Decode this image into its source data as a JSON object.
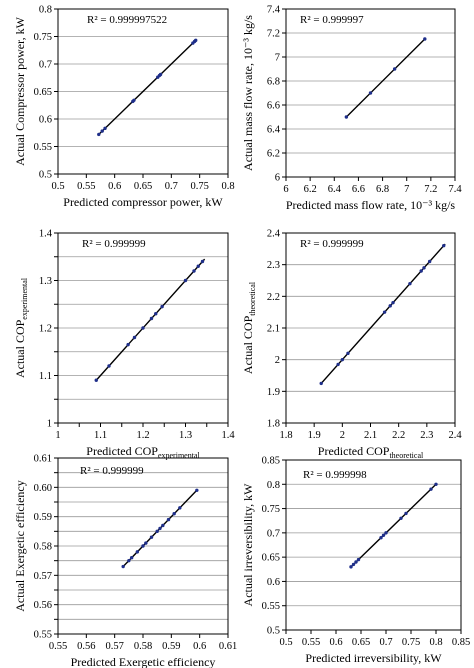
{
  "chart_data": [
    {
      "type": "scatter",
      "title": "",
      "r2_label": "R² = 0.999997522",
      "xlabel": "Predicted compressor power, kW",
      "ylabel": "Actual Compressor power, kW",
      "xlim": [
        0.5,
        0.8
      ],
      "ylim": [
        0.5,
        0.8
      ],
      "xticks": [
        0.5,
        0.55,
        0.6,
        0.65,
        0.7,
        0.75,
        0.8
      ],
      "yticks": [
        0.5,
        0.55,
        0.6,
        0.65,
        0.7,
        0.75,
        0.8
      ],
      "xtick_labels": [
        "0.5",
        "0.55",
        "0.6",
        "0.65",
        "0.7",
        "0.75",
        "0.8"
      ],
      "ytick_labels": [
        "0.5",
        "0.55",
        "0.6",
        "0.65",
        "0.7",
        "0.75",
        "0.8"
      ],
      "grid": "horizontal",
      "fit_line": [
        0.57,
        0.745
      ],
      "series": [
        {
          "x": [
            0.572,
            0.578,
            0.583,
            0.632,
            0.634,
            0.676,
            0.679,
            0.681,
            0.738,
            0.741,
            0.743
          ],
          "y": [
            0.572,
            0.578,
            0.583,
            0.632,
            0.634,
            0.676,
            0.679,
            0.681,
            0.738,
            0.741,
            0.743
          ]
        }
      ]
    },
    {
      "type": "scatter",
      "title": "",
      "r2_label": "R² = 0.999997",
      "xlabel": "Predicted mass flow rate, 10⁻³ kg/s",
      "ylabel": "Actual mass flow rate, 10⁻³ kg/s",
      "xlim": [
        6,
        7.4
      ],
      "ylim": [
        6,
        7.4
      ],
      "xticks": [
        6,
        6.2,
        6.4,
        6.6,
        6.8,
        7,
        7.2,
        7.4
      ],
      "yticks": [
        6,
        6.2,
        6.4,
        6.6,
        6.8,
        7,
        7.2,
        7.4
      ],
      "xtick_labels": [
        "6",
        "6.2",
        "6.4",
        "6.6",
        "6.8",
        "7",
        "7.2",
        "7.4"
      ],
      "ytick_labels": [
        "6",
        "6.2",
        "6.4",
        "6.6",
        "6.8",
        "7",
        "7.2",
        "7.4"
      ],
      "grid": "horizontal",
      "fit_line": [
        6.5,
        7.15
      ],
      "series": [
        {
          "x": [
            6.5,
            6.7,
            6.9,
            7.15
          ],
          "y": [
            6.5,
            6.7,
            6.9,
            7.15
          ]
        }
      ]
    },
    {
      "type": "scatter",
      "title": "",
      "r2_label": "R² = 0.999999",
      "xlabel": "Predicted COP",
      "xlabel_sub": "experimental",
      "ylabel": "Actual COP",
      "ylabel_sub": "experimental",
      "xlim": [
        1.0,
        1.4
      ],
      "ylim": [
        1.0,
        1.4
      ],
      "xticks": [
        1.0,
        1.05,
        1.1,
        1.15,
        1.2,
        1.25,
        1.3,
        1.35,
        1.4
      ],
      "yticks": [
        1.0,
        1.05,
        1.1,
        1.15,
        1.2,
        1.25,
        1.3,
        1.35,
        1.4
      ],
      "xtick_labels": [
        "1",
        "",
        "1.1",
        "",
        "1.2",
        "",
        "1.3",
        "",
        "1.4"
      ],
      "ytick_labels": [
        "1",
        "",
        "1.1",
        "",
        "1.2",
        "",
        "1.3",
        "",
        "1.4"
      ],
      "grid": "horizontal",
      "fit_line": [
        1.09,
        1.345
      ],
      "series": [
        {
          "x": [
            1.09,
            1.12,
            1.165,
            1.18,
            1.2,
            1.22,
            1.23,
            1.245,
            1.3,
            1.32,
            1.33,
            1.34
          ],
          "y": [
            1.09,
            1.12,
            1.165,
            1.18,
            1.2,
            1.22,
            1.23,
            1.245,
            1.3,
            1.32,
            1.33,
            1.34
          ]
        }
      ]
    },
    {
      "type": "scatter",
      "title": "",
      "r2_label": "R² = 0.999999",
      "xlabel": "Predicted COP",
      "xlabel_sub": "theoretical",
      "ylabel": "Actual COP",
      "ylabel_sub": "theoretical",
      "xlim": [
        1.8,
        2.4
      ],
      "ylim": [
        1.8,
        2.4
      ],
      "xticks": [
        1.8,
        1.9,
        2.0,
        2.1,
        2.2,
        2.3,
        2.4
      ],
      "yticks": [
        1.8,
        1.9,
        2.0,
        2.1,
        2.2,
        2.3,
        2.4
      ],
      "xtick_labels": [
        "1.8",
        "1.9",
        "2",
        "2.1",
        "2.2",
        "2.3",
        "2.4"
      ],
      "ytick_labels": [
        "1.8",
        "1.9",
        "2",
        "2.1",
        "2.2",
        "2.3",
        "2.4"
      ],
      "grid": "horizontal",
      "fit_line": [
        1.925,
        2.365
      ],
      "series": [
        {
          "x": [
            1.925,
            1.985,
            2.0,
            2.02,
            2.15,
            2.17,
            2.18,
            2.24,
            2.28,
            2.29,
            2.31,
            2.36
          ],
          "y": [
            1.925,
            1.985,
            2.0,
            2.02,
            2.15,
            2.17,
            2.18,
            2.24,
            2.28,
            2.29,
            2.31,
            2.36
          ]
        }
      ]
    },
    {
      "type": "scatter",
      "title": "",
      "r2_label": "R² = 0.999999",
      "xlabel": "Predicted Exergetic efficiency",
      "ylabel": "Actual Exergetic efficiency",
      "xlim": [
        0.55,
        0.61
      ],
      "ylim": [
        0.55,
        0.61
      ],
      "xticks": [
        0.55,
        0.56,
        0.57,
        0.58,
        0.59,
        0.6,
        0.61
      ],
      "yticks": [
        0.55,
        0.555,
        0.56,
        0.565,
        0.57,
        0.575,
        0.58,
        0.585,
        0.59,
        0.595,
        0.6,
        0.605,
        0.61
      ],
      "xtick_labels": [
        "0.55",
        "0.56",
        "0.57",
        "0.58",
        "0.59",
        "0.6",
        "0.61"
      ],
      "ytick_labels": [
        "0.55",
        "",
        "0.56",
        "",
        "0.57",
        "",
        "0.58",
        "",
        "0.59",
        "",
        "0.60",
        "",
        "0.61"
      ],
      "grid": "horizontal",
      "fit_line": [
        0.573,
        0.599
      ],
      "series": [
        {
          "x": [
            0.573,
            0.575,
            0.576,
            0.578,
            0.58,
            0.581,
            0.583,
            0.585,
            0.586,
            0.587,
            0.589,
            0.591,
            0.593,
            0.599
          ],
          "y": [
            0.573,
            0.575,
            0.576,
            0.578,
            0.58,
            0.581,
            0.583,
            0.585,
            0.586,
            0.587,
            0.589,
            0.591,
            0.593,
            0.599
          ]
        }
      ]
    },
    {
      "type": "scatter",
      "title": "",
      "r2_label": "R² = 0.999998",
      "xlabel": "Predicted irreversibility, kW",
      "ylabel": "Actual irreversibility, kW",
      "xlim": [
        0.5,
        0.85
      ],
      "ylim": [
        0.5,
        0.85
      ],
      "xticks": [
        0.5,
        0.55,
        0.6,
        0.65,
        0.7,
        0.75,
        0.8,
        0.85
      ],
      "yticks": [
        0.5,
        0.55,
        0.6,
        0.65,
        0.7,
        0.75,
        0.8,
        0.85
      ],
      "xtick_labels": [
        "0.5",
        "0.55",
        "0.6",
        "0.65",
        "0.7",
        "0.75",
        "0.8",
        "0.85"
      ],
      "ytick_labels": [
        "0.5",
        "0.55",
        "0.6",
        "0.65",
        "0.7",
        "0.75",
        "0.8",
        "0.85"
      ],
      "grid": "horizontal",
      "fit_line": [
        0.63,
        0.8
      ],
      "series": [
        {
          "x": [
            0.63,
            0.635,
            0.64,
            0.645,
            0.69,
            0.695,
            0.7,
            0.73,
            0.74,
            0.79,
            0.8
          ],
          "y": [
            0.63,
            0.635,
            0.64,
            0.645,
            0.69,
            0.695,
            0.7,
            0.73,
            0.74,
            0.79,
            0.8
          ]
        }
      ]
    }
  ]
}
